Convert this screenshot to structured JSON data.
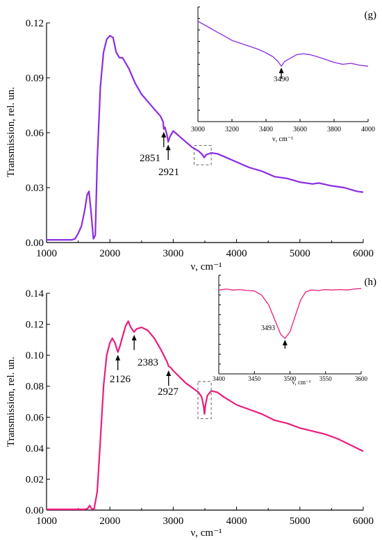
{
  "colors": {
    "panel_g": "#8a2be2",
    "panel_h": "#ec1c7b",
    "axis": "#000000",
    "box": "#666666"
  },
  "chart_data": [
    {
      "type": "line",
      "panel_label": "(g)",
      "xlabel": "ν, cm⁻¹",
      "ylabel": "Transmission, rel. un.",
      "xlim": [
        1000,
        6000
      ],
      "ylim": [
        0,
        0.12
      ],
      "xticks": [
        "1000",
        "2000",
        "3000",
        "4000",
        "5000",
        "6000"
      ],
      "yticks": [
        "0.00",
        "0.03",
        "0.06",
        "0.09",
        "0.12"
      ],
      "series": [
        {
          "color": "#8a2be2",
          "x": [
            1000,
            1400,
            1450,
            1500,
            1550,
            1600,
            1640,
            1670,
            1700,
            1740,
            1770,
            1800,
            1850,
            1900,
            1950,
            2000,
            2050,
            2100,
            2150,
            2200,
            2300,
            2400,
            2500,
            2600,
            2700,
            2800,
            2840,
            2851,
            2870,
            2900,
            2921,
            2950,
            3000,
            3100,
            3200,
            3300,
            3400,
            3460,
            3490,
            3520,
            3600,
            3700,
            3800,
            4000,
            4200,
            4400,
            4600,
            4800,
            5000,
            5200,
            5300,
            5500,
            5700,
            5900,
            6000
          ],
          "y": [
            0.0015,
            0.0015,
            0.002,
            0.005,
            0.009,
            0.017,
            0.026,
            0.028,
            0.018,
            0.002,
            0.004,
            0.045,
            0.085,
            0.104,
            0.111,
            0.113,
            0.112,
            0.104,
            0.101,
            0.101,
            0.095,
            0.087,
            0.081,
            0.077,
            0.073,
            0.069,
            0.066,
            0.062,
            0.063,
            0.059,
            0.055,
            0.058,
            0.061,
            0.058,
            0.055,
            0.052,
            0.05,
            0.048,
            0.0465,
            0.048,
            0.049,
            0.0485,
            0.047,
            0.044,
            0.041,
            0.039,
            0.036,
            0.035,
            0.033,
            0.032,
            0.0325,
            0.031,
            0.03,
            0.028,
            0.0275
          ]
        }
      ],
      "annotations": [
        "2851",
        "2921"
      ],
      "inset": {
        "xlim": [
          3000,
          4000
        ],
        "ylim": [
          0.04,
          0.052
        ],
        "xticks": [
          "3000",
          "3200",
          "3400",
          "3600",
          "3800",
          "4000"
        ],
        "xlabel": "ν, cm⁻¹",
        "annotation": "3490",
        "x": [
          3000,
          3050,
          3100,
          3150,
          3200,
          3250,
          3300,
          3350,
          3400,
          3440,
          3470,
          3490,
          3510,
          3540,
          3580,
          3620,
          3660,
          3700,
          3750,
          3800,
          3850,
          3900,
          3950,
          4000
        ],
        "y": [
          0.0505,
          0.05,
          0.0495,
          0.049,
          0.0485,
          0.0482,
          0.0479,
          0.0476,
          0.0472,
          0.0468,
          0.0463,
          0.0458,
          0.0463,
          0.0466,
          0.047,
          0.0471,
          0.047,
          0.0468,
          0.0465,
          0.0462,
          0.046,
          0.0461,
          0.0459,
          0.0458
        ]
      }
    },
    {
      "type": "line",
      "panel_label": "(h)",
      "xlabel": "ν, cm⁻¹",
      "ylabel": "Transmission, rel. un.",
      "xlim": [
        1000,
        6000
      ],
      "ylim": [
        0,
        0.14
      ],
      "xticks": [
        "1000",
        "2000",
        "3000",
        "4000",
        "5000",
        "6000"
      ],
      "yticks": [
        "0.00",
        "0.02",
        "0.04",
        "0.06",
        "0.08",
        "0.10",
        "0.12",
        "0.14"
      ],
      "series": [
        {
          "color": "#ec1c7b",
          "x": [
            1000,
            1600,
            1650,
            1680,
            1710,
            1750,
            1800,
            1850,
            1900,
            1950,
            2000,
            2040,
            2080,
            2126,
            2160,
            2200,
            2250,
            2290,
            2330,
            2383,
            2420,
            2500,
            2600,
            2700,
            2800,
            2900,
            2927,
            2960,
            3000,
            3100,
            3200,
            3300,
            3400,
            3450,
            3480,
            3493,
            3510,
            3540,
            3600,
            3700,
            3800,
            4000,
            4200,
            4400,
            4600,
            4800,
            5000,
            5200,
            5400,
            5600,
            5800,
            6000
          ],
          "y": [
            0.0005,
            0.0005,
            0.001,
            0.003,
            0.001,
            0.0005,
            0.012,
            0.045,
            0.08,
            0.1,
            0.108,
            0.111,
            0.108,
            0.102,
            0.106,
            0.112,
            0.119,
            0.122,
            0.118,
            0.115,
            0.117,
            0.118,
            0.116,
            0.111,
            0.104,
            0.096,
            0.093,
            0.092,
            0.09,
            0.086,
            0.082,
            0.079,
            0.076,
            0.073,
            0.067,
            0.062,
            0.068,
            0.074,
            0.077,
            0.076,
            0.073,
            0.068,
            0.065,
            0.062,
            0.058,
            0.056,
            0.053,
            0.051,
            0.049,
            0.046,
            0.042,
            0.038
          ]
        }
      ],
      "annotations": [
        "2126",
        "2383",
        "2927"
      ],
      "inset": {
        "xlim": [
          3400,
          3600
        ],
        "ylim": [
          0.06,
          0.08
        ],
        "xticks": [
          "3400",
          "3450",
          "3500",
          "3550",
          "3600"
        ],
        "xlabel": "ν, cm⁻¹",
        "annotation": "3493",
        "x": [
          3400,
          3410,
          3420,
          3430,
          3440,
          3450,
          3460,
          3470,
          3480,
          3487,
          3493,
          3500,
          3508,
          3515,
          3522,
          3530,
          3540,
          3550,
          3560,
          3570,
          3580,
          3590,
          3600
        ],
        "y": [
          0.077,
          0.0772,
          0.077,
          0.0771,
          0.0769,
          0.0768,
          0.076,
          0.074,
          0.0705,
          0.068,
          0.0672,
          0.0685,
          0.072,
          0.075,
          0.0766,
          0.077,
          0.0769,
          0.0771,
          0.077,
          0.0771,
          0.077,
          0.0772,
          0.0773
        ]
      }
    }
  ]
}
